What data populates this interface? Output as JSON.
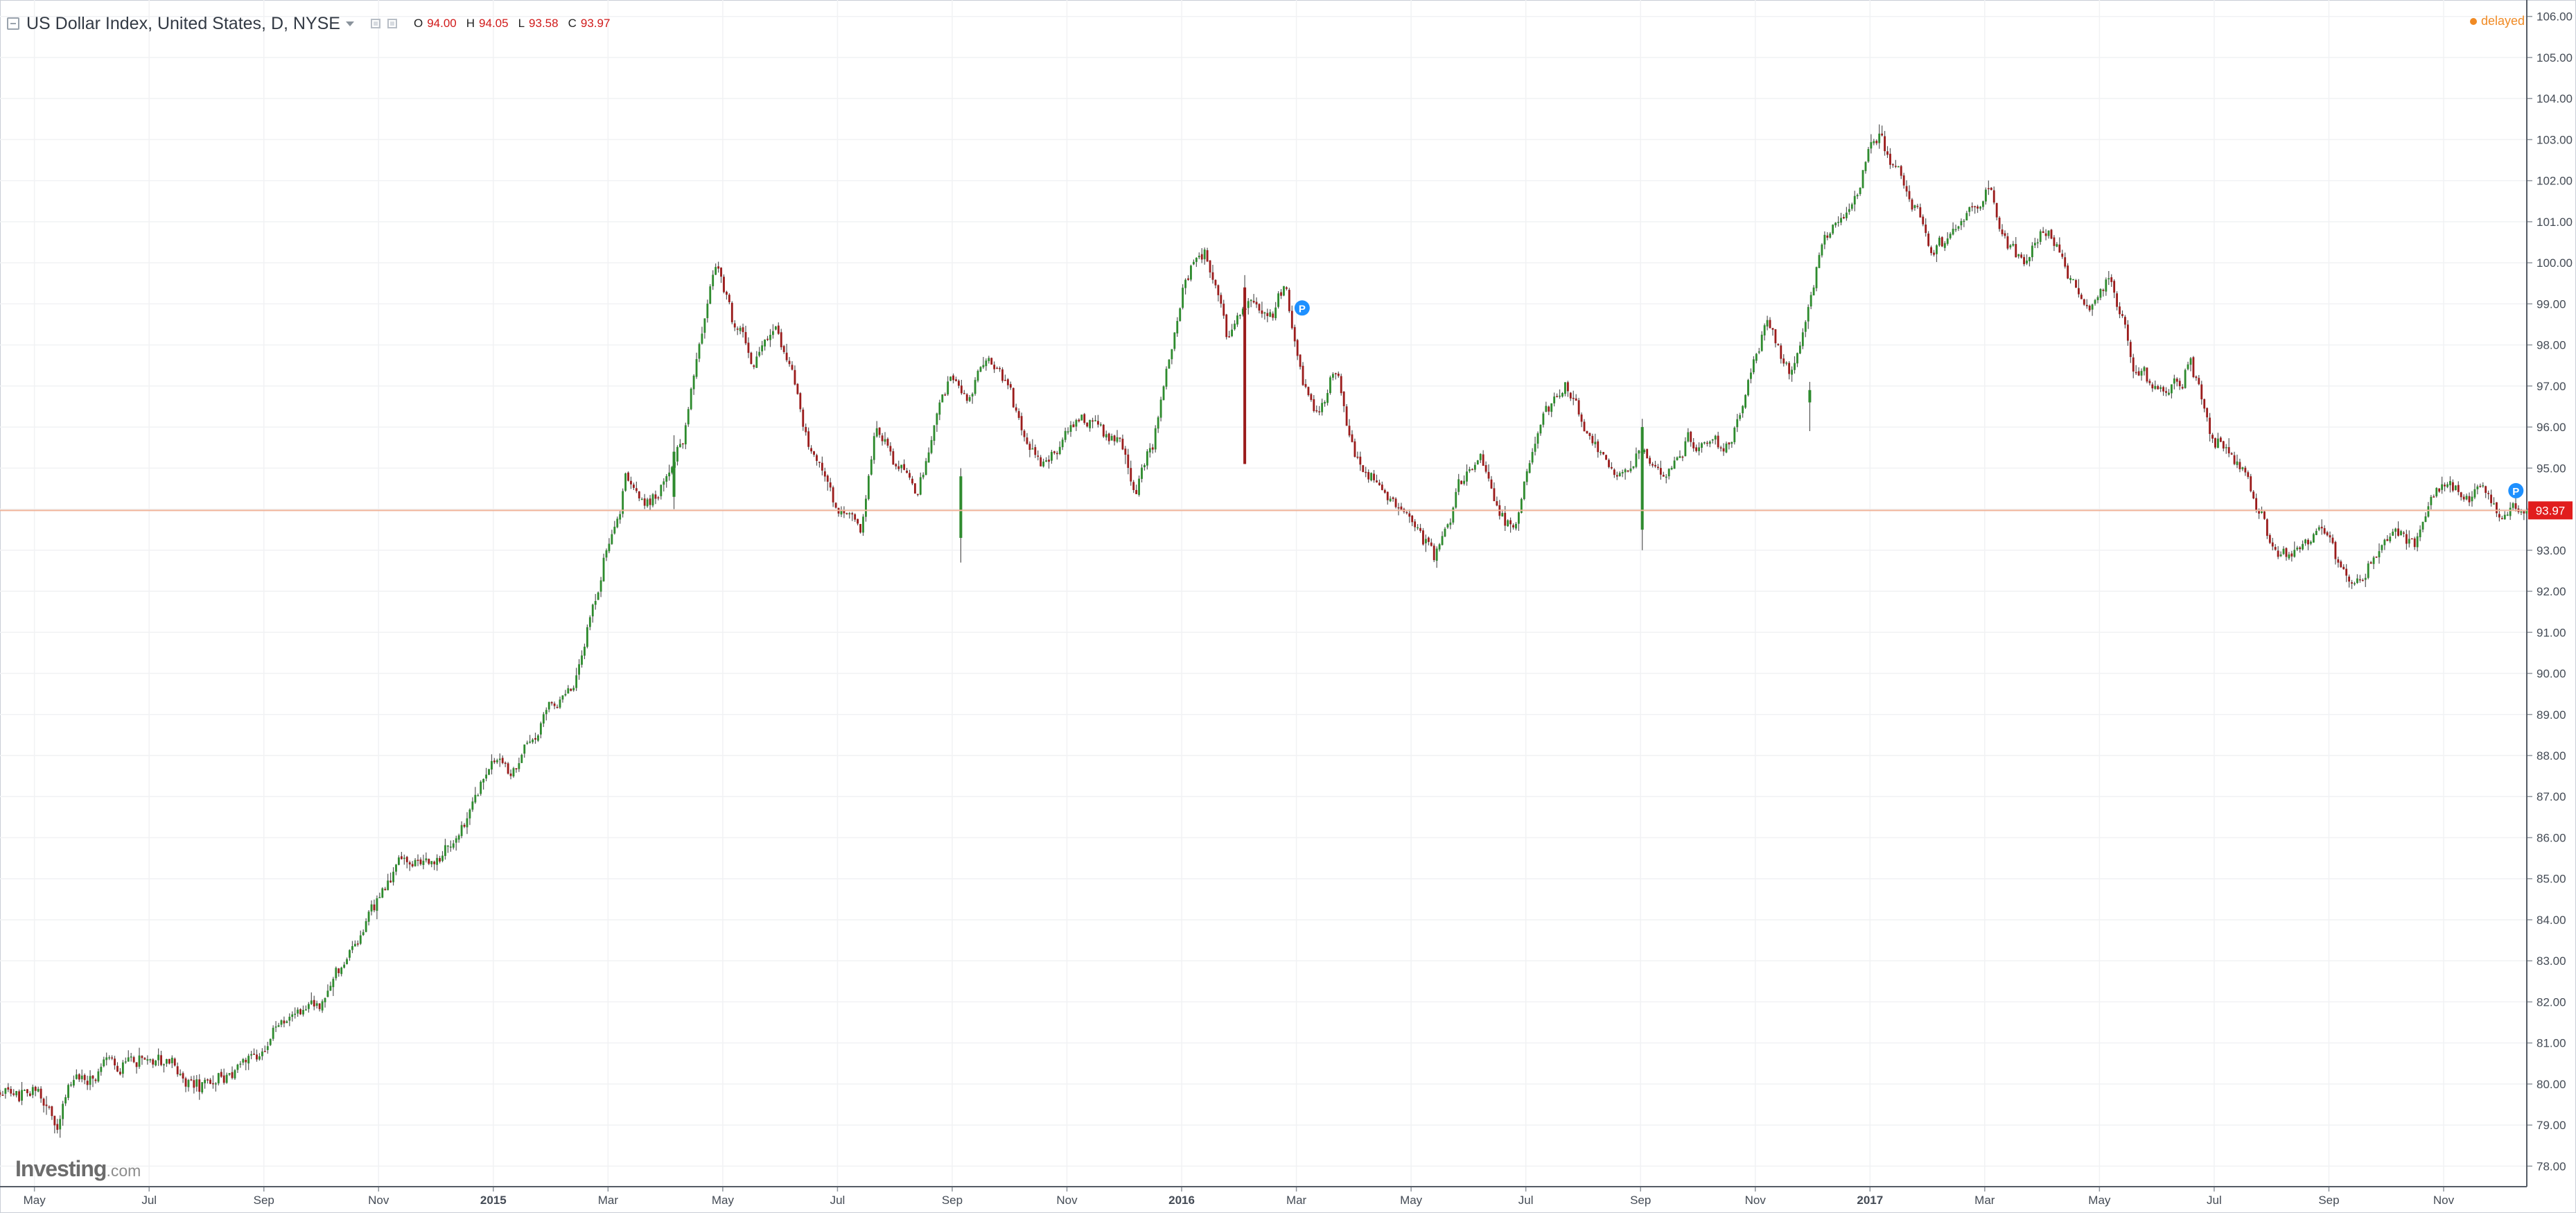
{
  "header": {
    "title": "US Dollar Index, United States, D, NYSE",
    "ohlc": [
      {
        "key": "O",
        "value": "94.00"
      },
      {
        "key": "H",
        "value": "94.05"
      },
      {
        "key": "L",
        "value": "93.58"
      },
      {
        "key": "C",
        "value": "93.97"
      }
    ],
    "status": "delayed"
  },
  "logo": {
    "brand": "Investing",
    "suffix": ".com"
  },
  "colors": {
    "up": "#2e8b2e",
    "down": "#9b1c1c",
    "wick": "#555555",
    "grid": "#f1f2f4",
    "price_line": "#f0b49a",
    "price_tag": "#e11d1d",
    "marker": "#1e90ff",
    "status": "#f08a24"
  },
  "chart_data": {
    "type": "candlestick",
    "timeframe": "D",
    "ylim": [
      77.5,
      106.4
    ],
    "y_ticks": [
      "78.00",
      "79.00",
      "80.00",
      "81.00",
      "82.00",
      "83.00",
      "84.00",
      "85.00",
      "86.00",
      "87.00",
      "88.00",
      "89.00",
      "90.00",
      "91.00",
      "92.00",
      "93.00",
      "94.00",
      "95.00",
      "96.00",
      "97.00",
      "98.00",
      "99.00",
      "100.00",
      "101.00",
      "102.00",
      "103.00",
      "104.00",
      "105.00",
      "106.00"
    ],
    "x_ticks": [
      {
        "label": "May",
        "month": 0,
        "bold": false
      },
      {
        "label": "Jul",
        "month": 2,
        "bold": false
      },
      {
        "label": "Sep",
        "month": 4,
        "bold": false
      },
      {
        "label": "Nov",
        "month": 6,
        "bold": false
      },
      {
        "label": "2015",
        "month": 8,
        "bold": true
      },
      {
        "label": "Mar",
        "month": 10,
        "bold": false
      },
      {
        "label": "May",
        "month": 12,
        "bold": false
      },
      {
        "label": "Jul",
        "month": 14,
        "bold": false
      },
      {
        "label": "Sep",
        "month": 16,
        "bold": false
      },
      {
        "label": "Nov",
        "month": 18,
        "bold": false
      },
      {
        "label": "2016",
        "month": 20,
        "bold": true
      },
      {
        "label": "Mar",
        "month": 22,
        "bold": false
      },
      {
        "label": "May",
        "month": 24,
        "bold": false
      },
      {
        "label": "Jul",
        "month": 26,
        "bold": false
      },
      {
        "label": "Sep",
        "month": 28,
        "bold": false
      },
      {
        "label": "Nov",
        "month": 30,
        "bold": false
      },
      {
        "label": "2017",
        "month": 32,
        "bold": true
      },
      {
        "label": "Mar",
        "month": 34,
        "bold": false
      },
      {
        "label": "May",
        "month": 36,
        "bold": false
      },
      {
        "label": "Jul",
        "month": 38,
        "bold": false
      },
      {
        "label": "Sep",
        "month": 40,
        "bold": false
      },
      {
        "label": "Nov",
        "month": 42,
        "bold": false
      }
    ],
    "x_range_months": [
      -0.6,
      43.45
    ],
    "last_price": 93.97,
    "last_price_label": "93.97",
    "markers": [
      {
        "label": "P",
        "month": 22.1,
        "value": 98.9
      },
      {
        "label": "P",
        "month": 43.26,
        "value": 94.45
      }
    ],
    "path_months": [
      -0.6,
      0.0,
      0.4,
      0.6,
      1.3,
      1.9,
      2.5,
      3.0,
      3.8,
      4.3,
      5.0,
      5.5,
      6.0,
      6.4,
      7.0,
      7.6,
      8.0,
      8.3,
      8.8,
      9.4,
      9.8,
      10.1,
      10.3,
      10.6,
      10.9,
      11.3,
      11.6,
      11.9,
      12.2,
      12.5,
      12.9,
      13.2,
      13.6,
      14.0,
      14.4,
      14.7,
      15.0,
      15.4,
      15.7,
      16.0,
      16.3,
      16.6,
      16.9,
      17.2,
      17.6,
      18.0,
      18.5,
      18.9,
      19.2,
      19.5,
      19.8,
      20.1,
      20.4,
      20.8,
      21.1,
      21.5,
      21.8,
      22.1,
      22.4,
      22.7,
      23.0,
      23.4,
      23.8,
      24.1,
      24.4,
      24.8,
      25.2,
      25.5,
      25.8,
      26.0,
      26.3,
      26.7,
      27.0,
      27.3,
      27.6,
      28.0,
      28.4,
      28.8,
      29.2,
      29.6,
      29.9,
      30.2,
      30.6,
      31.0,
      31.2,
      31.5,
      31.8,
      32.0,
      32.2,
      32.5,
      32.8,
      33.1,
      33.5,
      33.8,
      34.1,
      34.4,
      34.7,
      35.1,
      35.5,
      35.9,
      36.2,
      36.6,
      36.9,
      37.2,
      37.6,
      38.0,
      38.4,
      38.7,
      39.0,
      39.4,
      39.8,
      40.1,
      40.4,
      40.8,
      41.1,
      41.5,
      41.8,
      42.1,
      42.4,
      42.7,
      43.0,
      43.2,
      43.45
    ],
    "path_values": [
      79.8,
      79.6,
      79.2,
      80.0,
      80.4,
      80.7,
      80.4,
      80.0,
      80.6,
      81.4,
      82.2,
      83.2,
      84.4,
      85.5,
      85.4,
      86.7,
      87.9,
      87.7,
      88.6,
      90.0,
      92.0,
      93.4,
      94.8,
      94.2,
      94.5,
      95.6,
      98.2,
      100.0,
      98.6,
      97.6,
      98.3,
      97.3,
      95.2,
      94.0,
      93.6,
      96.2,
      95.2,
      94.4,
      96.3,
      97.2,
      96.6,
      97.8,
      97.2,
      95.9,
      95.0,
      95.8,
      96.2,
      95.4,
      94.4,
      95.7,
      97.8,
      99.6,
      100.1,
      98.2,
      99.1,
      98.6,
      99.4,
      97.2,
      96.3,
      97.4,
      95.5,
      94.6,
      94.2,
      93.8,
      92.8,
      94.5,
      95.3,
      94.1,
      93.4,
      94.8,
      96.4,
      96.9,
      96.1,
      95.4,
      94.9,
      95.5,
      94.7,
      95.8,
      95.4,
      95.6,
      97.2,
      98.6,
      97.1,
      99.3,
      100.8,
      101.2,
      101.7,
      102.9,
      103.1,
      102.1,
      101.3,
      100.2,
      100.9,
      101.4,
      101.8,
      100.4,
      99.9,
      100.8,
      99.5,
      98.8,
      99.6,
      97.6,
      97.0,
      96.8,
      97.7,
      95.6,
      95.2,
      94.4,
      93.2,
      92.9,
      93.6,
      92.8,
      91.9,
      92.8,
      93.6,
      93.2,
      94.3,
      94.6,
      94.4,
      94.6,
      93.8,
      94.1,
      93.97
    ],
    "notable_bars": [
      {
        "month": 11.15,
        "open": 94.3,
        "close": 95.4,
        "high": 95.8,
        "low": 94.0
      },
      {
        "month": 16.15,
        "open": 93.3,
        "close": 94.8,
        "high": 95.0,
        "low": 92.7
      },
      {
        "month": 21.1,
        "open": 99.4,
        "close": 95.1,
        "high": 99.7,
        "low": 95.1
      },
      {
        "month": 28.03,
        "open": 93.5,
        "close": 96.0,
        "high": 96.2,
        "low": 93.0
      },
      {
        "month": 30.95,
        "open": 96.6,
        "close": 96.9,
        "high": 97.1,
        "low": 95.9
      }
    ],
    "candles_per_month": 21
  }
}
